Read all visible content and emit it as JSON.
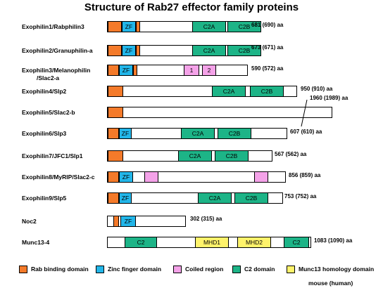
{
  "title": "Structure of Rab27 effector family proteins",
  "colors": {
    "rab": "#f47a2a",
    "zf": "#22b6e9",
    "coiled": "#f4a2e8",
    "c2": "#1db487",
    "mhd": "#fff36b"
  },
  "proteins": [
    {
      "name": "Exophilin1/Rabphilin3",
      "length": "681 (690)  aa",
      "domains": [
        {
          "type": "rab",
          "label": ""
        },
        {
          "type": "zf",
          "label": "ZF"
        },
        {
          "type": "rab",
          "label": ""
        },
        {
          "type": "c2",
          "label": "C2A"
        },
        {
          "type": "c2",
          "label": "C2B"
        }
      ]
    },
    {
      "name": "Exophilin2/Granuphilin-a",
      "length": "673 (671) aa",
      "domains": [
        {
          "type": "rab",
          "label": ""
        },
        {
          "type": "zf",
          "label": "ZF"
        },
        {
          "type": "rab",
          "label": ""
        },
        {
          "type": "c2",
          "label": "C2A"
        },
        {
          "type": "c2",
          "label": "C2B"
        }
      ]
    },
    {
      "name": "Exophilin3/Melanophilin",
      "name2": "/Slac2-a",
      "length": "590 (572) aa",
      "domains": [
        {
          "type": "rab",
          "label": ""
        },
        {
          "type": "zf",
          "label": "ZF"
        },
        {
          "type": "rab",
          "label": ""
        },
        {
          "type": "coiled",
          "label": "1"
        },
        {
          "type": "coiled",
          "label": "2"
        }
      ]
    },
    {
      "name": "Exophilin4/Slp2",
      "length": "950 (910) aa",
      "domains": [
        {
          "type": "rab",
          "label": ""
        },
        {
          "type": "c2",
          "label": "C2A"
        },
        {
          "type": "c2",
          "label": "C2B"
        }
      ]
    },
    {
      "name": "Exophilin5/Slac2-b",
      "length": "1960 (1989) aa",
      "domains": [
        {
          "type": "rab",
          "label": ""
        }
      ]
    },
    {
      "name": "Exophilin6/Slp3",
      "length": "607 (610) aa",
      "domains": [
        {
          "type": "rab",
          "label": ""
        },
        {
          "type": "zf",
          "label": "ZF"
        },
        {
          "type": "c2",
          "label": "C2A"
        },
        {
          "type": "c2",
          "label": "C2B"
        }
      ]
    },
    {
      "name": "Exophilin7/JFC1/Slp1",
      "length": "567 (562) aa",
      "domains": [
        {
          "type": "rab",
          "label": ""
        },
        {
          "type": "c2",
          "label": "C2A"
        },
        {
          "type": "c2",
          "label": "C2B"
        }
      ]
    },
    {
      "name": "Exophilin8/MyRIP/Slac2-c",
      "length": "856 (859) aa",
      "domains": [
        {
          "type": "rab",
          "label": ""
        },
        {
          "type": "zf",
          "label": "ZF"
        },
        {
          "type": "coiled",
          "label": ""
        },
        {
          "type": "coiled",
          "label": ""
        }
      ]
    },
    {
      "name": "Exophilin9/Slp5",
      "length": "753 (752) aa",
      "domains": [
        {
          "type": "rab",
          "label": ""
        },
        {
          "type": "zf",
          "label": "ZF"
        },
        {
          "type": "c2",
          "label": "C2A"
        },
        {
          "type": "c2",
          "label": "C2B"
        }
      ]
    },
    {
      "name": "Noc2",
      "length": "302 (315) aa",
      "domains": [
        {
          "type": "rab",
          "label": ""
        },
        {
          "type": "zf",
          "label": "ZF"
        }
      ]
    },
    {
      "name": "Munc13-4",
      "length": "1083 (1090) aa",
      "domains": [
        {
          "type": "c2",
          "label": "C2"
        },
        {
          "type": "mhd",
          "label": "MHD1"
        },
        {
          "type": "mhd",
          "label": "MHD2"
        },
        {
          "type": "c2",
          "label": "C2"
        }
      ]
    }
  ],
  "legend": [
    {
      "type": "rab",
      "label": "Rab binding domain"
    },
    {
      "type": "zf",
      "label": "Zinc finger domain"
    },
    {
      "type": "coiled",
      "label": "Coiled region"
    },
    {
      "type": "c2",
      "label": "C2 domain"
    },
    {
      "type": "mhd",
      "label": "Munc13 homology domain"
    }
  ],
  "note": "mouse (human)"
}
